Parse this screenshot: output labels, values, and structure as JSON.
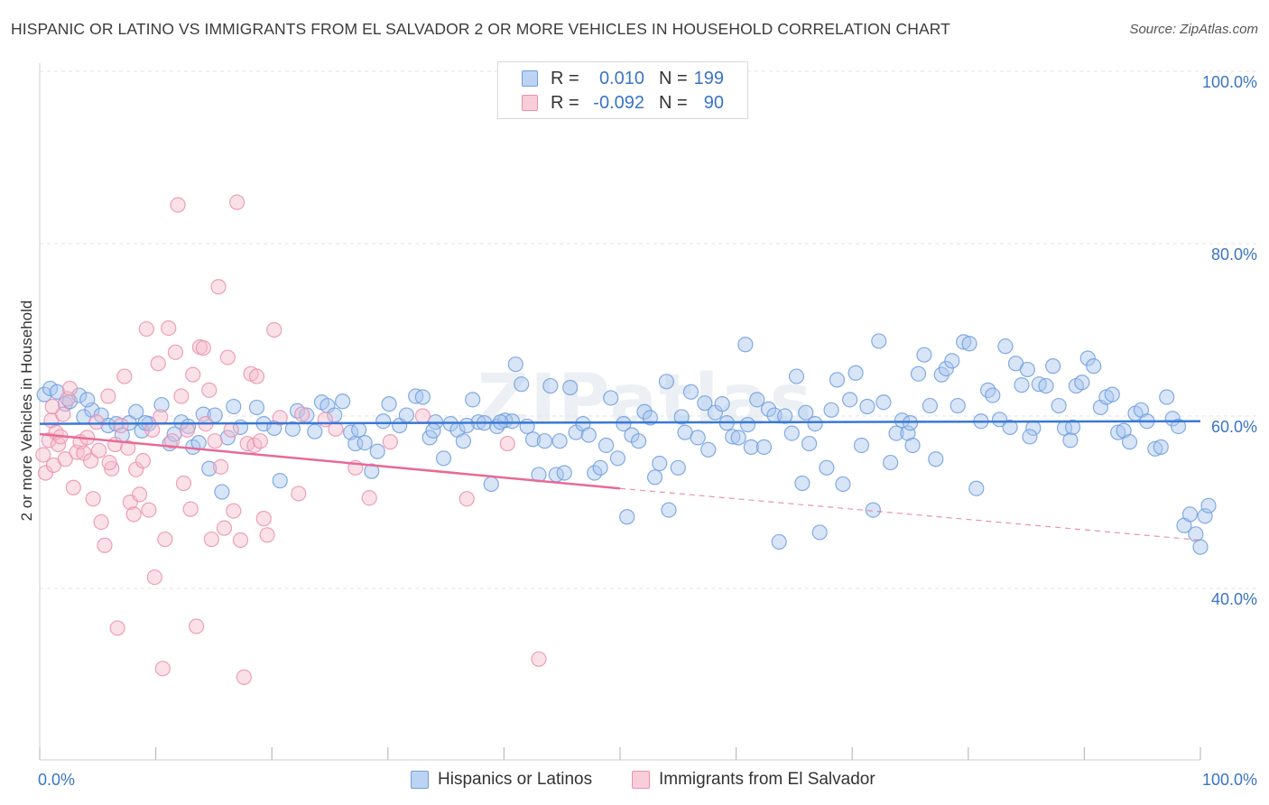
{
  "title": "HISPANIC OR LATINO VS IMMIGRANTS FROM EL SALVADOR 2 OR MORE VEHICLES IN HOUSEHOLD CORRELATION CHART",
  "source": "Source: ZipAtlas.com",
  "watermark": "ZIPatlas",
  "legend": {
    "rows": [
      {
        "r_label": "R =",
        "r_value": "0.010",
        "n_label": "N =",
        "n_value": "199"
      },
      {
        "r_label": "R =",
        "r_value": "-0.092",
        "n_label": "N =",
        "n_value": "90"
      }
    ]
  },
  "bottom_legend": [
    "Hispanics or Latinos",
    "Immigrants from El Salvador"
  ],
  "colors": {
    "blue_fill": "#a9c6ee",
    "blue_stroke": "#6f9ee0",
    "blue_line": "#3a78d6",
    "pink_fill": "#f5bccd",
    "pink_stroke": "#ec8fab",
    "pink_line": "#e86a96",
    "axis_text": "#3a74c7",
    "grid": "#e3e3e3"
  },
  "chart_data": {
    "type": "scatter",
    "title": "HISPANIC OR LATINO VS IMMIGRANTS FROM EL SALVADOR 2 OR MORE VEHICLES IN HOUSEHOLD CORRELATION CHART",
    "xlabel": "",
    "ylabel": "2 or more Vehicles in Household",
    "xlim": [
      0,
      100
    ],
    "ylim": [
      18,
      102
    ],
    "x_tick_labels": [
      "0.0%",
      "100.0%"
    ],
    "y_ticks": [
      40,
      60,
      80,
      100
    ],
    "y_tick_labels": [
      "40.0%",
      "60.0%",
      "80.0%",
      "100.0%"
    ],
    "grid": "horizontal dashed",
    "legend_position": "top-center",
    "series": [
      {
        "name": "Hispanics or Latinos",
        "color": "#6f9ee0",
        "trend": {
          "x": [
            0,
            100
          ],
          "y": [
            59.1,
            59.4
          ],
          "style": "solid"
        },
        "points": [
          [
            0.4,
            62.5
          ],
          [
            0.9,
            63.2
          ],
          [
            1.5,
            62.8
          ],
          [
            2.2,
            61.4
          ],
          [
            2.6,
            61.7
          ],
          [
            3.4,
            62.4
          ],
          [
            3.8,
            59.9
          ],
          [
            4.5,
            60.7
          ],
          [
            5.3,
            60.1
          ],
          [
            5.9,
            58.9
          ],
          [
            6.6,
            59.1
          ],
          [
            7.1,
            57.8
          ],
          [
            7.7,
            59.2
          ],
          [
            8.3,
            60.5
          ],
          [
            8.8,
            58.3
          ],
          [
            9.4,
            59.1
          ],
          [
            10.5,
            61.3
          ],
          [
            11.2,
            56.8
          ],
          [
            11.6,
            57.9
          ],
          [
            12.2,
            59.3
          ],
          [
            12.8,
            58.8
          ],
          [
            13.2,
            56.4
          ],
          [
            13.7,
            56.9
          ],
          [
            14.1,
            60.2
          ],
          [
            14.6,
            53.9
          ],
          [
            15.7,
            51.2
          ],
          [
            16.2,
            57.5
          ],
          [
            16.7,
            61.1
          ],
          [
            17.3,
            58.7
          ],
          [
            18.7,
            61.0
          ],
          [
            19.3,
            59.1
          ],
          [
            20.2,
            58.6
          ],
          [
            20.7,
            52.5
          ],
          [
            21.8,
            58.5
          ],
          [
            22.2,
            60.6
          ],
          [
            23.0,
            60.1
          ],
          [
            23.7,
            58.2
          ],
          [
            24.3,
            61.6
          ],
          [
            24.8,
            61.2
          ],
          [
            25.4,
            60.1
          ],
          [
            26.1,
            61.7
          ],
          [
            26.8,
            58.1
          ],
          [
            27.2,
            56.8
          ],
          [
            28.0,
            56.9
          ],
          [
            28.6,
            53.6
          ],
          [
            29.1,
            55.9
          ],
          [
            29.6,
            59.4
          ],
          [
            30.1,
            61.4
          ],
          [
            31.0,
            58.9
          ],
          [
            31.6,
            60.1
          ],
          [
            32.4,
            62.3
          ],
          [
            33.0,
            62.2
          ],
          [
            33.6,
            57.5
          ],
          [
            34.1,
            59.3
          ],
          [
            34.8,
            55.1
          ],
          [
            35.4,
            59.1
          ],
          [
            36.0,
            58.4
          ],
          [
            36.5,
            57.1
          ],
          [
            37.3,
            61.9
          ],
          [
            37.8,
            59.3
          ],
          [
            38.3,
            59.2
          ],
          [
            38.9,
            52.1
          ],
          [
            39.4,
            58.8
          ],
          [
            40.1,
            59.5
          ],
          [
            40.7,
            59.4
          ],
          [
            41.0,
            66.0
          ],
          [
            41.5,
            63.7
          ],
          [
            42.0,
            58.8
          ],
          [
            42.5,
            57.3
          ],
          [
            43.0,
            53.2
          ],
          [
            43.5,
            57.1
          ],
          [
            44.0,
            63.5
          ],
          [
            44.5,
            53.2
          ],
          [
            44.8,
            57.1
          ],
          [
            45.2,
            53.4
          ],
          [
            45.7,
            63.3
          ],
          [
            46.2,
            58.1
          ],
          [
            46.8,
            59.1
          ],
          [
            47.3,
            57.8
          ],
          [
            47.8,
            53.4
          ],
          [
            48.3,
            54.0
          ],
          [
            48.8,
            56.6
          ],
          [
            49.2,
            62.1
          ],
          [
            49.8,
            55.1
          ],
          [
            50.3,
            59.1
          ],
          [
            50.6,
            48.3
          ],
          [
            51.0,
            57.8
          ],
          [
            51.6,
            57.1
          ],
          [
            52.1,
            60.5
          ],
          [
            52.6,
            59.8
          ],
          [
            53.0,
            52.9
          ],
          [
            53.4,
            54.5
          ],
          [
            54.0,
            64.0
          ],
          [
            54.2,
            49.1
          ],
          [
            55.0,
            54.0
          ],
          [
            55.6,
            58.1
          ],
          [
            56.1,
            62.8
          ],
          [
            56.7,
            57.5
          ],
          [
            57.3,
            61.5
          ],
          [
            57.6,
            56.1
          ],
          [
            58.2,
            60.4
          ],
          [
            58.8,
            61.4
          ],
          [
            59.2,
            59.2
          ],
          [
            59.7,
            57.6
          ],
          [
            60.2,
            57.5
          ],
          [
            60.8,
            68.3
          ],
          [
            61.3,
            56.4
          ],
          [
            61.8,
            61.9
          ],
          [
            62.4,
            56.4
          ],
          [
            62.8,
            60.8
          ],
          [
            63.3,
            60.1
          ],
          [
            63.7,
            45.4
          ],
          [
            64.2,
            60.0
          ],
          [
            64.8,
            58.0
          ],
          [
            65.2,
            64.6
          ],
          [
            65.7,
            52.2
          ],
          [
            66.3,
            56.8
          ],
          [
            66.8,
            59.1
          ],
          [
            67.2,
            46.5
          ],
          [
            67.8,
            54.0
          ],
          [
            68.2,
            60.7
          ],
          [
            68.7,
            64.2
          ],
          [
            69.2,
            52.1
          ],
          [
            69.8,
            61.9
          ],
          [
            70.3,
            65.0
          ],
          [
            70.8,
            56.6
          ],
          [
            71.3,
            61.1
          ],
          [
            71.8,
            49.1
          ],
          [
            72.3,
            68.7
          ],
          [
            72.7,
            61.6
          ],
          [
            73.3,
            54.6
          ],
          [
            73.8,
            58.0
          ],
          [
            74.3,
            59.5
          ],
          [
            74.8,
            58.0
          ],
          [
            75.2,
            56.6
          ],
          [
            75.7,
            64.9
          ],
          [
            76.2,
            67.1
          ],
          [
            76.7,
            61.2
          ],
          [
            77.2,
            55.0
          ],
          [
            77.7,
            64.8
          ],
          [
            78.1,
            65.5
          ],
          [
            78.6,
            66.4
          ],
          [
            79.1,
            61.2
          ],
          [
            79.6,
            68.6
          ],
          [
            80.1,
            68.4
          ],
          [
            80.7,
            51.6
          ],
          [
            81.1,
            59.4
          ],
          [
            81.7,
            63.0
          ],
          [
            82.1,
            62.4
          ],
          [
            82.7,
            59.6
          ],
          [
            83.2,
            68.1
          ],
          [
            83.6,
            58.7
          ],
          [
            84.1,
            66.1
          ],
          [
            84.6,
            63.6
          ],
          [
            85.1,
            65.4
          ],
          [
            85.6,
            58.6
          ],
          [
            86.1,
            63.7
          ],
          [
            86.7,
            63.5
          ],
          [
            87.3,
            65.8
          ],
          [
            87.8,
            61.2
          ],
          [
            88.3,
            58.6
          ],
          [
            88.8,
            57.2
          ],
          [
            89.3,
            63.5
          ],
          [
            89.8,
            63.9
          ],
          [
            90.3,
            66.7
          ],
          [
            90.8,
            65.8
          ],
          [
            91.4,
            61.0
          ],
          [
            91.9,
            62.2
          ],
          [
            92.4,
            62.5
          ],
          [
            92.9,
            58.1
          ],
          [
            93.4,
            58.3
          ],
          [
            93.9,
            57.0
          ],
          [
            94.4,
            60.3
          ],
          [
            94.9,
            60.7
          ],
          [
            95.4,
            59.4
          ],
          [
            96.1,
            56.2
          ],
          [
            96.6,
            56.4
          ],
          [
            97.1,
            62.2
          ],
          [
            97.6,
            59.7
          ],
          [
            98.1,
            58.8
          ],
          [
            98.6,
            47.3
          ],
          [
            99.1,
            48.6
          ],
          [
            99.6,
            46.3
          ],
          [
            100.0,
            44.8
          ],
          [
            100.4,
            48.4
          ],
          [
            100.7,
            49.6
          ],
          [
            89.0,
            58.7
          ],
          [
            85.3,
            57.6
          ],
          [
            61.0,
            59.0
          ],
          [
            36.8,
            58.9
          ],
          [
            4.1,
            61.9
          ],
          [
            9.1,
            59.2
          ],
          [
            15.1,
            60.1
          ],
          [
            27.5,
            58.4
          ],
          [
            33.9,
            58.3
          ],
          [
            39.7,
            59.3
          ],
          [
            55.3,
            59.9
          ],
          [
            66.0,
            60.4
          ],
          [
            75.0,
            59.2
          ]
        ]
      },
      {
        "name": "Immigrants from El Salvador",
        "color": "#ec8fab",
        "trend": {
          "x": [
            0,
            50
          ],
          "y": [
            57.9,
            51.6
          ],
          "style": "solid",
          "dashed_extension_to": [
            100,
            45.6
          ]
        },
        "points": [
          [
            0.3,
            55.5
          ],
          [
            0.5,
            53.4
          ],
          [
            0.8,
            57.2
          ],
          [
            1.0,
            59.5
          ],
          [
            1.2,
            54.3
          ],
          [
            1.4,
            58.1
          ],
          [
            1.6,
            56.7
          ],
          [
            1.8,
            57.6
          ],
          [
            2.0,
            60.2
          ],
          [
            2.2,
            55.0
          ],
          [
            2.4,
            62.0
          ],
          [
            2.6,
            63.2
          ],
          [
            2.9,
            51.7
          ],
          [
            3.2,
            55.8
          ],
          [
            3.5,
            57.0
          ],
          [
            3.8,
            55.7
          ],
          [
            4.1,
            57.5
          ],
          [
            4.4,
            54.8
          ],
          [
            4.6,
            50.4
          ],
          [
            4.9,
            59.3
          ],
          [
            5.1,
            56.0
          ],
          [
            5.3,
            47.7
          ],
          [
            5.6,
            45.0
          ],
          [
            5.9,
            62.3
          ],
          [
            6.2,
            53.9
          ],
          [
            6.5,
            56.7
          ],
          [
            6.7,
            35.4
          ],
          [
            7.0,
            58.9
          ],
          [
            7.3,
            64.6
          ],
          [
            7.6,
            56.3
          ],
          [
            7.8,
            50.0
          ],
          [
            8.1,
            48.6
          ],
          [
            8.3,
            53.8
          ],
          [
            8.6,
            50.9
          ],
          [
            8.9,
            54.8
          ],
          [
            9.2,
            70.1
          ],
          [
            9.4,
            49.1
          ],
          [
            9.7,
            58.4
          ],
          [
            9.9,
            41.3
          ],
          [
            10.2,
            66.1
          ],
          [
            10.4,
            59.9
          ],
          [
            10.6,
            30.7
          ],
          [
            10.8,
            45.7
          ],
          [
            11.1,
            70.2
          ],
          [
            11.4,
            57.1
          ],
          [
            11.7,
            67.4
          ],
          [
            11.9,
            84.5
          ],
          [
            12.2,
            62.3
          ],
          [
            12.4,
            52.2
          ],
          [
            12.7,
            58.4
          ],
          [
            13.0,
            49.2
          ],
          [
            13.2,
            64.8
          ],
          [
            13.5,
            35.6
          ],
          [
            13.8,
            68.0
          ],
          [
            14.1,
            67.9
          ],
          [
            14.3,
            59.1
          ],
          [
            14.6,
            63.0
          ],
          [
            14.8,
            45.7
          ],
          [
            15.1,
            57.1
          ],
          [
            15.4,
            75.0
          ],
          [
            15.6,
            54.1
          ],
          [
            15.9,
            47.0
          ],
          [
            16.2,
            66.8
          ],
          [
            16.5,
            58.4
          ],
          [
            16.7,
            49.0
          ],
          [
            17.0,
            84.8
          ],
          [
            17.3,
            45.6
          ],
          [
            17.6,
            29.7
          ],
          [
            17.9,
            56.8
          ],
          [
            18.2,
            64.9
          ],
          [
            18.5,
            56.6
          ],
          [
            18.7,
            64.6
          ],
          [
            19.0,
            57.1
          ],
          [
            19.3,
            48.1
          ],
          [
            19.6,
            46.2
          ],
          [
            20.2,
            70.0
          ],
          [
            20.7,
            59.8
          ],
          [
            22.3,
            51.0
          ],
          [
            22.6,
            60.2
          ],
          [
            24.6,
            59.6
          ],
          [
            25.5,
            58.5
          ],
          [
            27.2,
            54.0
          ],
          [
            28.4,
            50.5
          ],
          [
            30.2,
            57.0
          ],
          [
            33.0,
            60.0
          ],
          [
            36.8,
            50.4
          ],
          [
            40.3,
            56.8
          ],
          [
            43.0,
            31.8
          ],
          [
            1.1,
            61.1
          ],
          [
            6.0,
            54.6
          ]
        ]
      }
    ]
  }
}
